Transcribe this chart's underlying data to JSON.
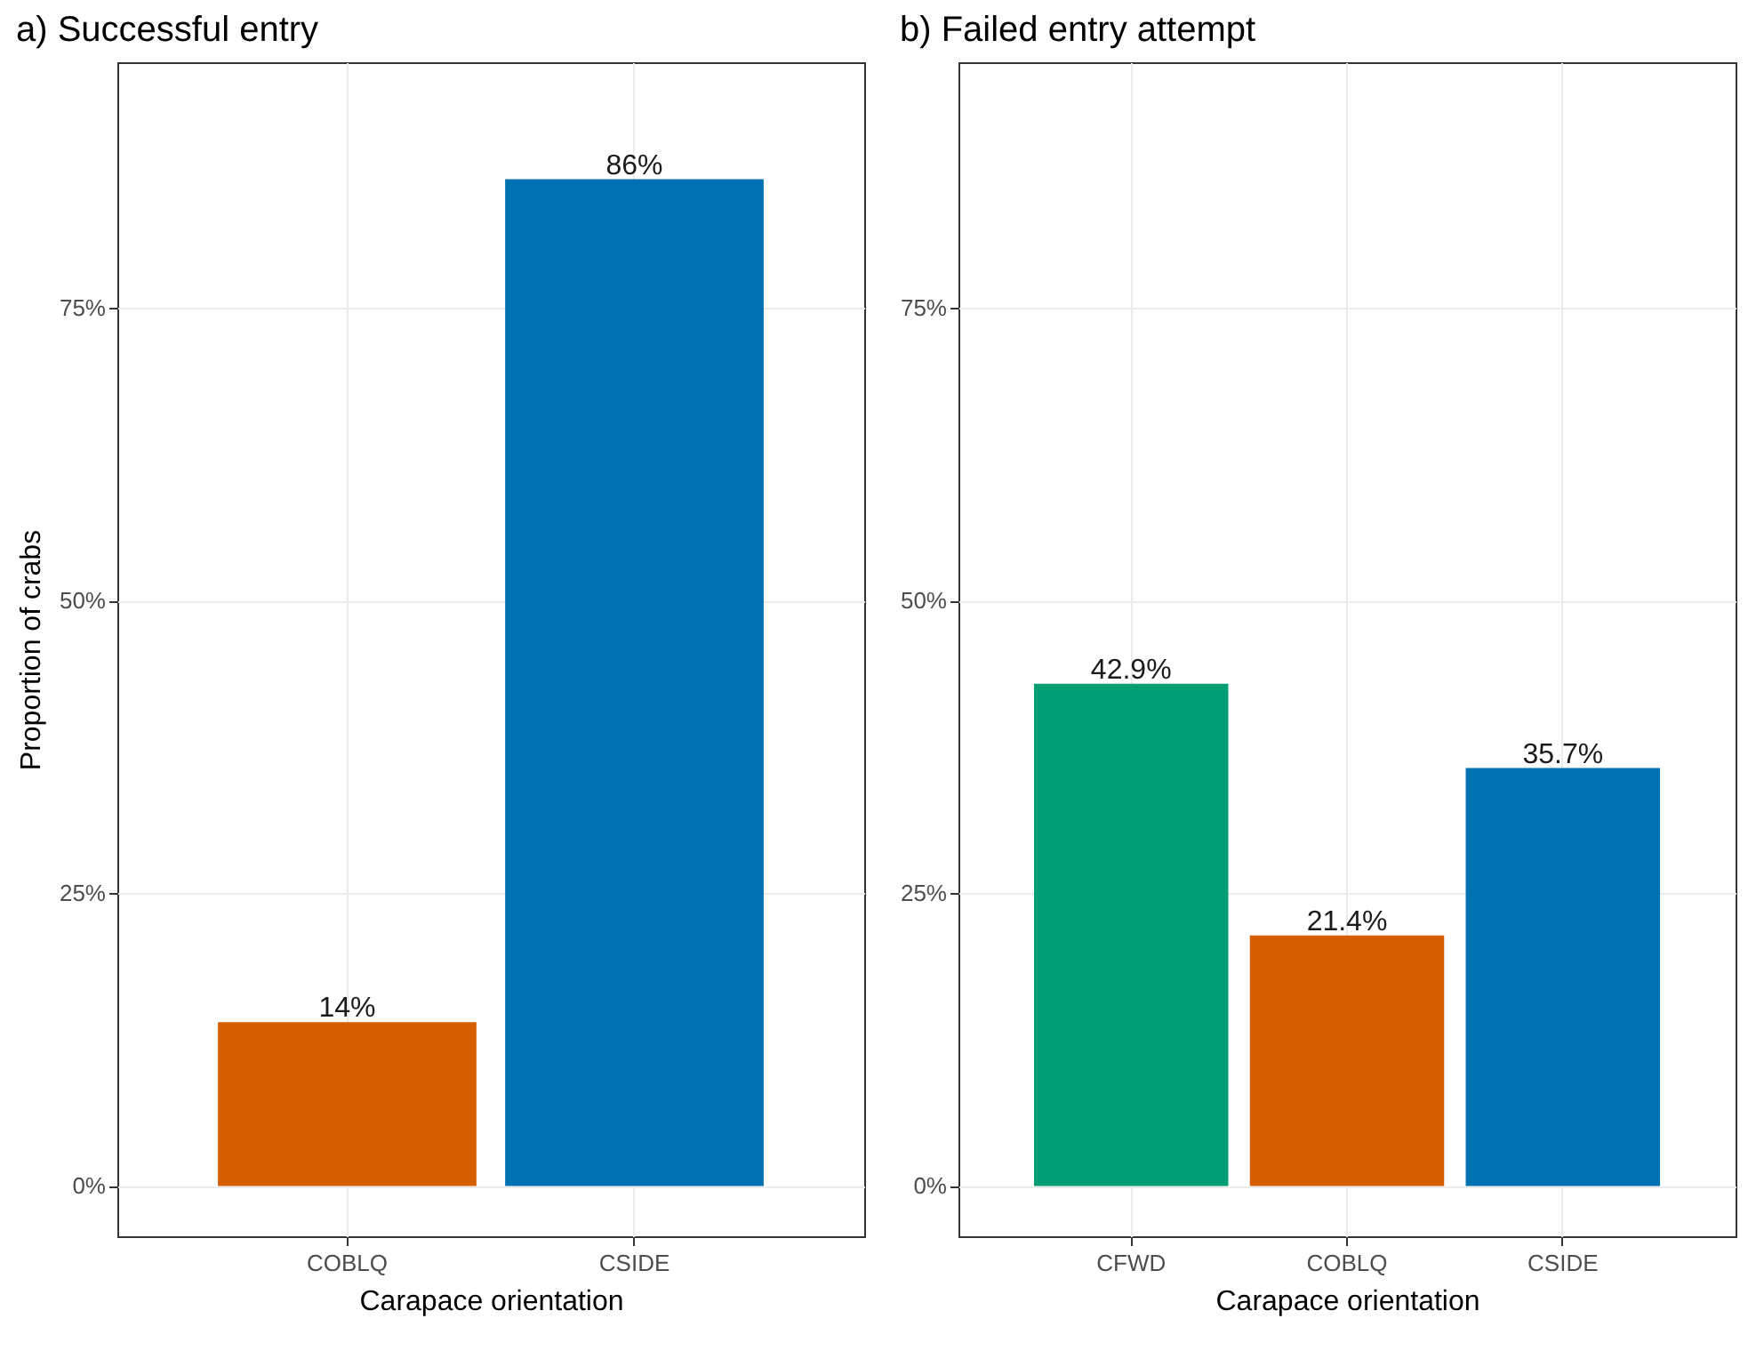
{
  "chart_data": [
    {
      "type": "bar",
      "title": "a) Successful entry",
      "categories": [
        "COBLQ",
        "CSIDE"
      ],
      "values": [
        14,
        86
      ],
      "colors": [
        "#d55e00",
        "#0072b2"
      ],
      "value_labels": [
        "14%",
        "86%"
      ],
      "xlabel": "Carapace orientation",
      "ylabel": "Proportion of crabs",
      "ylim": [
        -4.3,
        96
      ],
      "yticks": [
        {
          "value": 0,
          "label": "0%"
        },
        {
          "value": 25,
          "label": "25%"
        },
        {
          "value": 50,
          "label": "50%"
        },
        {
          "value": 75,
          "label": "75%"
        }
      ],
      "grid": true
    },
    {
      "type": "bar",
      "title": "b) Failed entry attempt",
      "categories": [
        "CFWD",
        "COBLQ",
        "CSIDE"
      ],
      "values": [
        42.9,
        21.4,
        35.7
      ],
      "colors": [
        "#009e73",
        "#d55e00",
        "#0072b2"
      ],
      "value_labels": [
        "42.9%",
        "21.4%",
        "35.7%"
      ],
      "xlabel": "Carapace orientation",
      "ylim": [
        -4.3,
        96
      ],
      "yticks": [
        {
          "value": 0,
          "label": "0%"
        },
        {
          "value": 25,
          "label": "25%"
        },
        {
          "value": 50,
          "label": "50%"
        },
        {
          "value": 75,
          "label": "75%"
        }
      ],
      "grid": true
    }
  ]
}
